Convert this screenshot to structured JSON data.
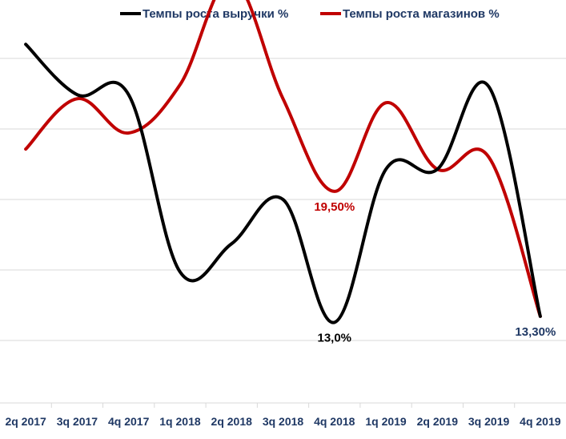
{
  "chart_data": {
    "type": "line",
    "title": "",
    "xlabel": "",
    "ylabel": "",
    "categories": [
      "2q 2017",
      "3q 2017",
      "4q 2017",
      "1q 2018",
      "2q 2018",
      "3q 2018",
      "4q 2018",
      "1q 2019",
      "2q 2019",
      "3q 2019",
      "4q 2019"
    ],
    "ylim": [
      9,
      29
    ],
    "grid": true,
    "legend_position": "top",
    "series": [
      {
        "name": "Темпы роста выручки %",
        "color": "#000000",
        "values": [
          26.8,
          24.3,
          24.3,
          15.5,
          16.9,
          19.1,
          13.0,
          20.6,
          20.6,
          24.7,
          13.3
        ]
      },
      {
        "name": "Темпы роста магазинов %",
        "color": "#c00000",
        "values": [
          21.6,
          24.1,
          22.4,
          24.8,
          30.0,
          24.1,
          19.5,
          23.9,
          20.6,
          21.2,
          13.3
        ]
      }
    ],
    "annotations": [
      {
        "series": 0,
        "index": 6,
        "text": "13,0%",
        "color": "#000000"
      },
      {
        "series": 1,
        "index": 6,
        "text": "19,50%",
        "color": "#c00000"
      },
      {
        "series": 1,
        "index": 10,
        "text": "13,30%",
        "color": "#1f3864"
      }
    ]
  }
}
